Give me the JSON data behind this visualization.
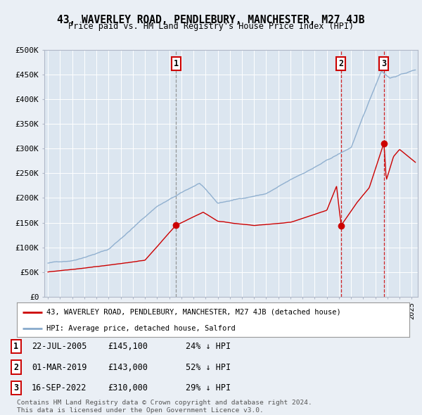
{
  "title": "43, WAVERLEY ROAD, PENDLEBURY, MANCHESTER, M27 4JB",
  "subtitle": "Price paid vs. HM Land Registry's House Price Index (HPI)",
  "ylabel_ticks": [
    "£0",
    "£50K",
    "£100K",
    "£150K",
    "£200K",
    "£250K",
    "£300K",
    "£350K",
    "£400K",
    "£450K",
    "£500K"
  ],
  "ytick_vals": [
    0,
    50000,
    100000,
    150000,
    200000,
    250000,
    300000,
    350000,
    400000,
    450000,
    500000
  ],
  "xlim_start": 1994.7,
  "xlim_end": 2025.5,
  "ylim": [
    0,
    500000
  ],
  "red_line_color": "#cc0000",
  "blue_line_color": "#88aacc",
  "background_color": "#eaeff5",
  "plot_bg_color": "#dce6f0",
  "grid_color": "#ffffff",
  "sale_points": [
    {
      "year": 2005.55,
      "price": 145100,
      "label": "1",
      "vline_color": "#888888",
      "vline_style": "--"
    },
    {
      "year": 2019.17,
      "price": 143000,
      "label": "2",
      "vline_color": "#cc0000",
      "vline_style": "--"
    },
    {
      "year": 2022.71,
      "price": 310000,
      "label": "3",
      "vline_color": "#cc0000",
      "vline_style": "--"
    }
  ],
  "legend_red": "43, WAVERLEY ROAD, PENDLEBURY, MANCHESTER, M27 4JB (detached house)",
  "legend_blue": "HPI: Average price, detached house, Salford",
  "table_rows": [
    {
      "num": "1",
      "date": "22-JUL-2005",
      "price": "£145,100",
      "hpi": "24% ↓ HPI"
    },
    {
      "num": "2",
      "date": "01-MAR-2019",
      "price": "£143,000",
      "hpi": "52% ↓ HPI"
    },
    {
      "num": "3",
      "date": "16-SEP-2022",
      "price": "£310,000",
      "hpi": "29% ↓ HPI"
    }
  ],
  "footnote1": "Contains HM Land Registry data © Crown copyright and database right 2024.",
  "footnote2": "This data is licensed under the Open Government Licence v3.0."
}
